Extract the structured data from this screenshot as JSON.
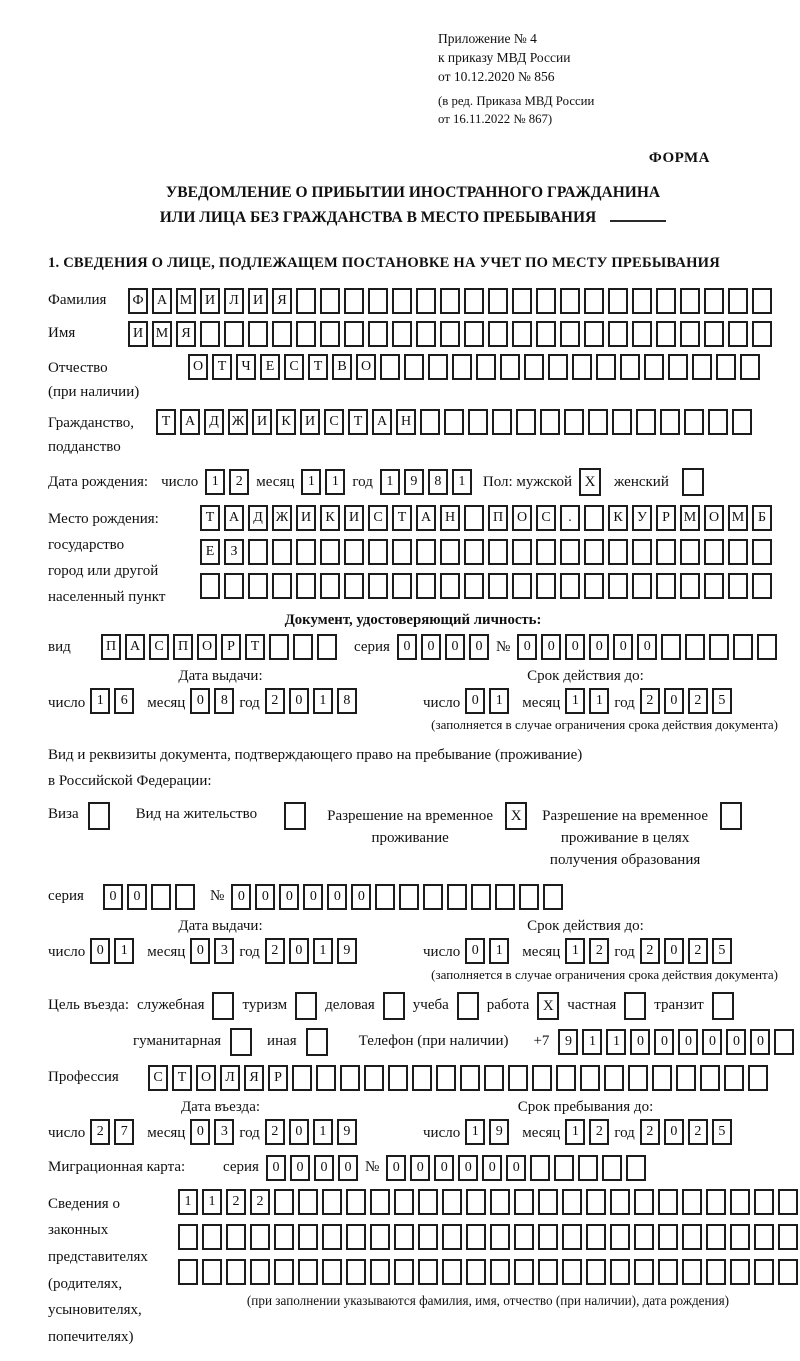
{
  "header": {
    "lines": [
      "Приложение № 4",
      "к приказу МВД России",
      "от 10.12.2020 № 856",
      "(в ред. Приказа МВД России",
      "от 16.11.2022 № 867)"
    ],
    "forma": "ФОРМА"
  },
  "title": {
    "line1": "УВЕДОМЛЕНИЕ О ПРИБЫТИИ ИНОСТРАННОГО ГРАЖДАНИНА",
    "line2": "ИЛИ ЛИЦА БЕЗ ГРАЖДАНСТВА В МЕСТО ПРЕБЫВАНИЯ"
  },
  "section1_heading": "1. СВЕДЕНИЯ О ЛИЦЕ, ПОДЛЕЖАЩЕМ ПОСТАНОВКЕ НА УЧЕТ ПО МЕСТУ ПРЕБЫВАНИЯ",
  "shared": {
    "day": "число",
    "month": "месяц",
    "year": "год"
  },
  "surname": {
    "label": "Фамилия",
    "cells": [
      "Ф",
      "А",
      "М",
      "И",
      "Л",
      "И",
      "Я"
    ]
  },
  "name": {
    "label": "Имя",
    "cells": [
      "И",
      "М",
      "Я"
    ]
  },
  "patronymic": {
    "label1": "Отчество",
    "label2": "(при наличии)",
    "cells": [
      "О",
      "Т",
      "Ч",
      "Е",
      "С",
      "Т",
      "В",
      "О"
    ]
  },
  "citizenship": {
    "label1": "Гражданство,",
    "label2": "подданство",
    "cells": [
      "Т",
      "А",
      "Д",
      "Ж",
      "И",
      "К",
      "И",
      "С",
      "Т",
      "А",
      "Н"
    ]
  },
  "birth": {
    "label": "Дата рождения:",
    "day": [
      "1",
      "2"
    ],
    "month": [
      "1",
      "1"
    ],
    "year": [
      "1",
      "9",
      "8",
      "1"
    ],
    "sex_male_label": "Пол: мужской",
    "sex_female_label": "женский",
    "male_checked": "X",
    "female_checked": ""
  },
  "birthplace": {
    "labels": [
      "Место рождения:",
      "государство",
      "город или другой",
      "населенный пункт"
    ],
    "row1": [
      "Т",
      "А",
      "Д",
      "Ж",
      "И",
      "К",
      "И",
      "С",
      "Т",
      "А",
      "Н",
      "",
      "П",
      "О",
      "С",
      ".",
      "",
      "К",
      "У",
      "Р",
      "М",
      "О",
      "М",
      "Б"
    ],
    "row2": [
      "Е",
      "З"
    ],
    "row3": []
  },
  "iddoc": {
    "heading": "Документ, удостоверяющий личность:",
    "type_label": "вид",
    "type": [
      "П",
      "А",
      "С",
      "П",
      "О",
      "Р",
      "Т"
    ],
    "series_label": "серия",
    "series": [
      "0",
      "0",
      "0",
      "0"
    ],
    "number_label": "№",
    "number": [
      "0",
      "0",
      "0",
      "0",
      "0",
      "0"
    ],
    "issue": {
      "head": "Дата выдачи:",
      "day": [
        "1",
        "6"
      ],
      "month": [
        "0",
        "8"
      ],
      "year": [
        "2",
        "0",
        "1",
        "8"
      ]
    },
    "valid": {
      "head": "Срок действия до:",
      "day": [
        "0",
        "1"
      ],
      "month": [
        "1",
        "1"
      ],
      "year": [
        "2",
        "0",
        "2",
        "5"
      ]
    },
    "note": "(заполняется в случае ограничения срока действия документа)"
  },
  "resdoc": {
    "line1": "Вид и реквизиты документа, подтверждающего право на пребывание (проживание)",
    "line2": "в Российской Федерации:",
    "options": [
      {
        "label": "Виза",
        "checked": ""
      },
      {
        "label": "Вид на жительство",
        "checked": ""
      },
      {
        "label": "Разрешение на временное проживание",
        "checked": "X"
      },
      {
        "label": "Разрешение на временное проживание в целях получения образования",
        "checked": ""
      }
    ],
    "series_label": "серия",
    "series": [
      "0",
      "0"
    ],
    "number_label": "№",
    "number": [
      "0",
      "0",
      "0",
      "0",
      "0",
      "0"
    ],
    "issue": {
      "head": "Дата выдачи:",
      "day": [
        "0",
        "1"
      ],
      "month": [
        "0",
        "3"
      ],
      "year": [
        "2",
        "0",
        "1",
        "9"
      ]
    },
    "valid": {
      "head": "Срок действия до:",
      "day": [
        "0",
        "1"
      ],
      "month": [
        "1",
        "2"
      ],
      "year": [
        "2",
        "0",
        "2",
        "5"
      ]
    },
    "note": "(заполняется в случае ограничения срока действия документа)"
  },
  "purpose": {
    "label": "Цель въезда:",
    "options": [
      {
        "label": "служебная",
        "checked": ""
      },
      {
        "label": "туризм",
        "checked": ""
      },
      {
        "label": "деловая",
        "checked": ""
      },
      {
        "label": "учеба",
        "checked": ""
      },
      {
        "label": "работа",
        "checked": "X"
      },
      {
        "label": "частная",
        "checked": ""
      },
      {
        "label": "транзит",
        "checked": ""
      }
    ],
    "options2": [
      {
        "label": "гуманитарная",
        "checked": ""
      },
      {
        "label": "иная",
        "checked": ""
      }
    ],
    "phone_label": "Телефон (при наличии)",
    "phone_prefix": "+7",
    "phone": [
      "9",
      "1",
      "1",
      "0",
      "0",
      "0",
      "0",
      "0",
      "0"
    ]
  },
  "profession": {
    "label": "Профессия",
    "cells": [
      "С",
      "Т",
      "О",
      "Л",
      "Я",
      "Р"
    ]
  },
  "entry": {
    "issue": {
      "head": "Дата въезда:",
      "day": [
        "2",
        "7"
      ],
      "month": [
        "0",
        "3"
      ],
      "year": [
        "2",
        "0",
        "1",
        "9"
      ]
    },
    "valid": {
      "head": "Срок пребывания до:",
      "day": [
        "1",
        "9"
      ],
      "month": [
        "1",
        "2"
      ],
      "year": [
        "2",
        "0",
        "2",
        "5"
      ]
    }
  },
  "migration": {
    "label": "Миграционная карта:",
    "series_label": "серия",
    "series": [
      "0",
      "0",
      "0",
      "0"
    ],
    "number_label": "№",
    "number": [
      "0",
      "0",
      "0",
      "0",
      "0",
      "0"
    ]
  },
  "legal": {
    "labels": [
      "Сведения о",
      "законных",
      "представителях",
      "(родителях,",
      "усыновителях,",
      "попечителях)"
    ],
    "row1": [
      "1",
      "1",
      "2",
      "2"
    ],
    "row2": [],
    "row3": [],
    "note": "(при заполнении указываются фамилия, имя, отчество (при наличии), дата рождения)"
  }
}
